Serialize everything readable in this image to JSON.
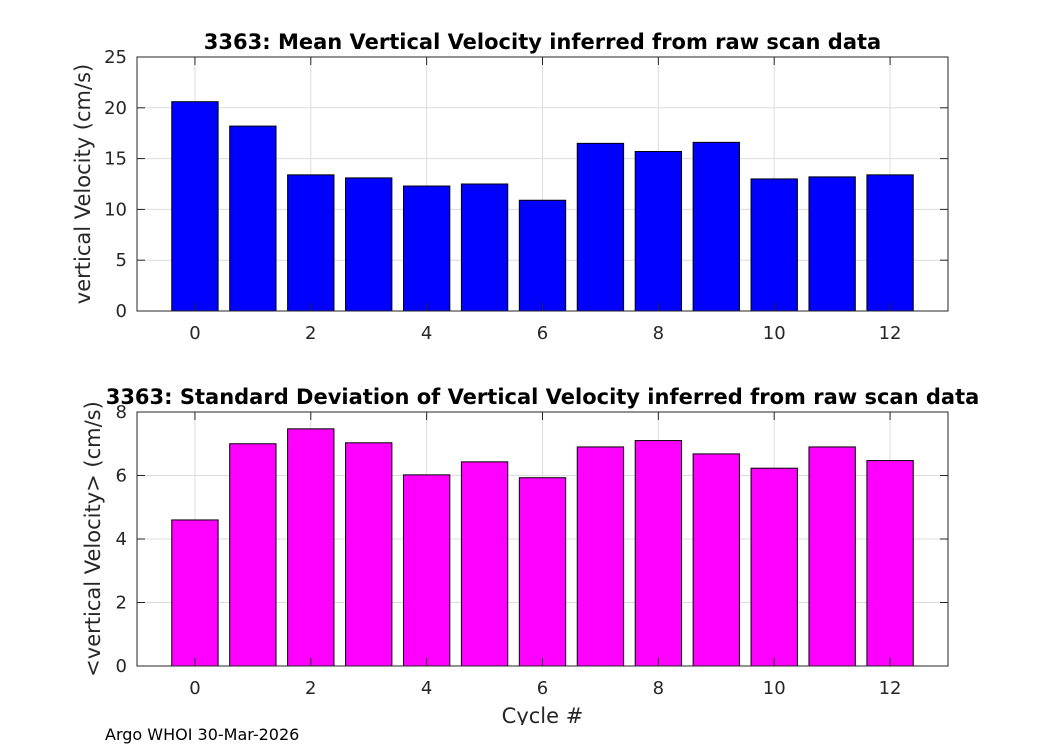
{
  "chart_data": [
    {
      "type": "bar",
      "title": "3363: Mean Vertical Velocity inferred from raw scan data",
      "xlabel": "",
      "ylabel": "vertical Velocity (cm/s)",
      "categories": [
        0,
        1,
        2,
        3,
        4,
        5,
        6,
        7,
        8,
        9,
        10,
        11,
        12
      ],
      "values": [
        20.6,
        18.2,
        13.4,
        13.1,
        12.3,
        12.5,
        10.9,
        16.5,
        15.7,
        16.6,
        13.0,
        13.2,
        13.4
      ],
      "xlim": [
        -1,
        13
      ],
      "ylim": [
        0,
        25
      ],
      "xticks": [
        0,
        2,
        4,
        6,
        8,
        10,
        12
      ],
      "yticks": [
        0,
        5,
        10,
        15,
        20,
        25
      ],
      "color": "#0000ff",
      "grid": true
    },
    {
      "type": "bar",
      "title": "3363: Standard Deviation of Vertical Velocity inferred from raw scan data",
      "xlabel": "Cycle #",
      "ylabel": "<vertical Velocity> (cm/s)",
      "categories": [
        0,
        1,
        2,
        3,
        4,
        5,
        6,
        7,
        8,
        9,
        10,
        11,
        12
      ],
      "values": [
        4.6,
        7.0,
        7.47,
        7.03,
        6.02,
        6.43,
        5.93,
        6.9,
        7.1,
        6.68,
        6.23,
        6.9,
        6.47
      ],
      "xlim": [
        -1,
        13
      ],
      "ylim": [
        0,
        8
      ],
      "xticks": [
        0,
        2,
        4,
        6,
        8,
        10,
        12
      ],
      "yticks": [
        0,
        2,
        4,
        6,
        8
      ],
      "color": "#ff00ff",
      "grid": true
    }
  ],
  "footer": "Argo WHOI 30-Mar-2026"
}
